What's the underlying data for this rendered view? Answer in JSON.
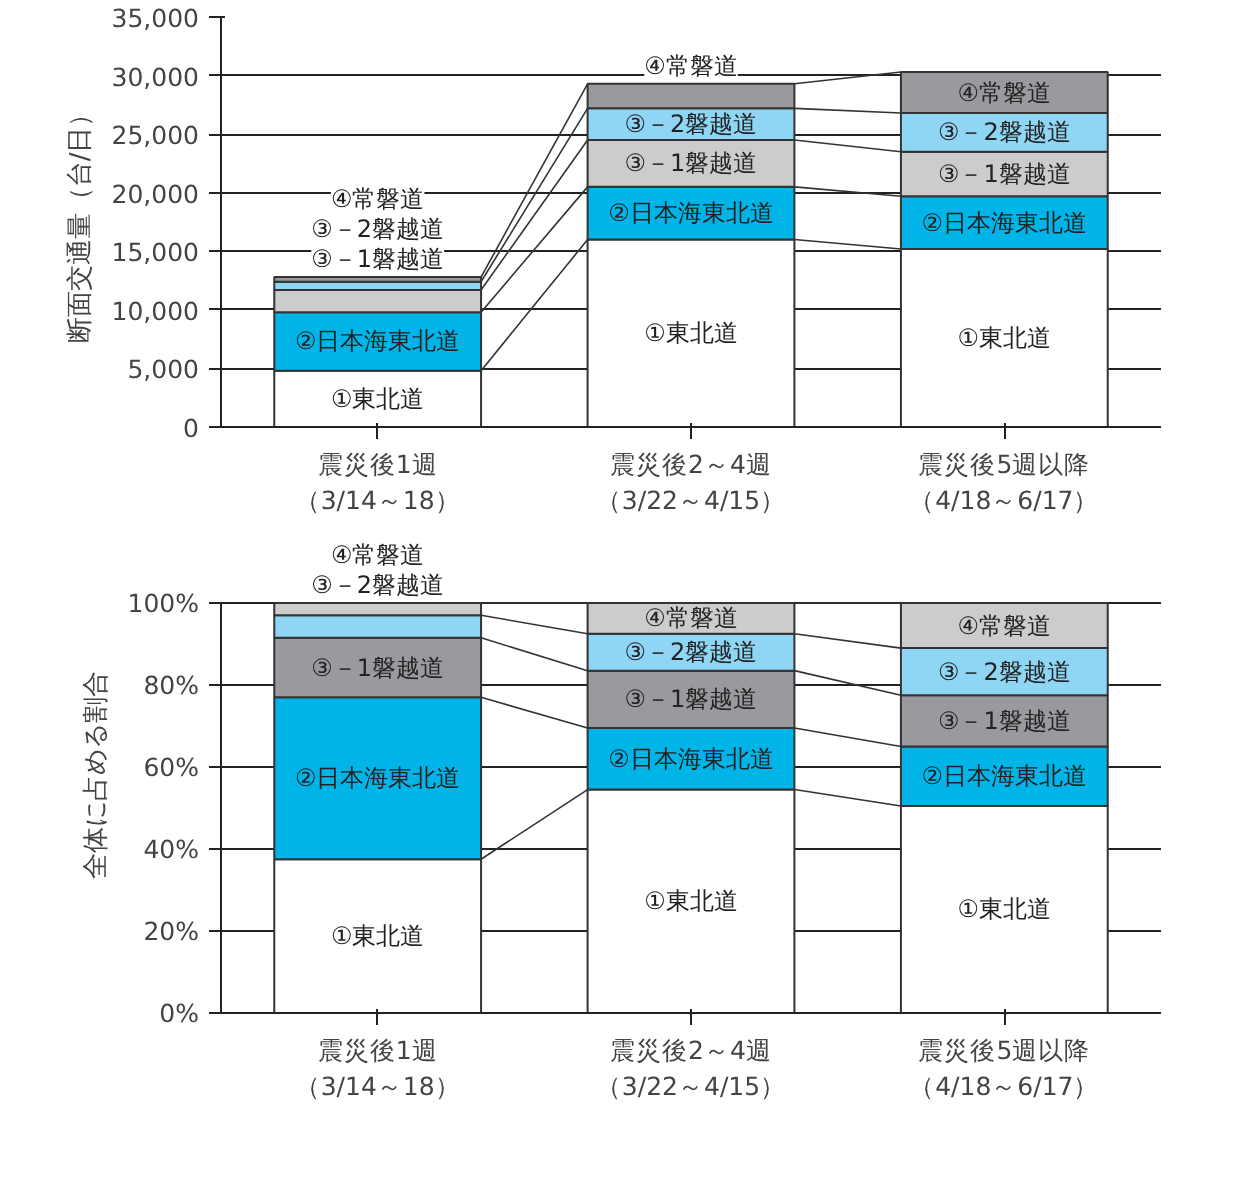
{
  "chart_data": [
    {
      "type": "bar",
      "stacked": true,
      "ylabel": "断面交通量（台/日）",
      "categories": [
        "震災後1週（3/14～18）",
        "震災後2～4週（3/22～4/15）",
        "震災後5週以降（4/18～6/17）"
      ],
      "legend": "top right",
      "grid": "y",
      "ylim": [
        0,
        35000
      ],
      "yticks": [
        {
          "value": 0,
          "label": "0"
        },
        {
          "value": 5000,
          "label": "5,000"
        },
        {
          "value": 10000,
          "label": "10,000"
        },
        {
          "value": 15000,
          "label": "15,000"
        },
        {
          "value": 20000,
          "label": "20,000"
        },
        {
          "value": 25000,
          "label": "25,000"
        },
        {
          "value": 30000,
          "label": "30,000"
        },
        {
          "value": 35000,
          "label": "35,000"
        }
      ],
      "series": [
        {
          "name": "①東北道",
          "color": "#ffffff",
          "values": [
            4800,
            16000,
            15200
          ]
        },
        {
          "name": "②日本海東北道",
          "color": "#00b4e8",
          "values": [
            5000,
            4500,
            4500
          ]
        },
        {
          "name": "③－1磐越道",
          "color": "#cccccc",
          "values": [
            1900,
            4000,
            3800
          ]
        },
        {
          "name": "③－2磐越道",
          "color": "#8fd6f4",
          "values": [
            700,
            2700,
            3300
          ]
        },
        {
          "name": "④常磐道",
          "color": "#9a9a9e",
          "values": [
            400,
            2100,
            3500
          ]
        }
      ]
    },
    {
      "type": "bar",
      "stacked": true,
      "ylabel": "全体に占める割合",
      "categories": [
        "震災後1週（3/14～18）",
        "震災後2～4週（3/22～4/15）",
        "震災後5週以降（4/18～6/17）"
      ],
      "legend": "top",
      "grid": "y",
      "ylim": [
        0,
        100
      ],
      "yticks": [
        {
          "value": 0,
          "label": "0%"
        },
        {
          "value": 20,
          "label": "20%"
        },
        {
          "value": 40,
          "label": "40%"
        },
        {
          "value": 60,
          "label": "60%"
        },
        {
          "value": 80,
          "label": "80%"
        },
        {
          "value": 100,
          "label": "100%"
        }
      ],
      "series": [
        {
          "name": "①東北道",
          "color": "#ffffff",
          "values": [
            37.5,
            54.5,
            50.5
          ]
        },
        {
          "name": "②日本海東北道",
          "color": "#00b4e8",
          "values": [
            39.5,
            15,
            14.5
          ]
        },
        {
          "name": "③－1磐越道",
          "color": "#9a9a9e",
          "values": [
            14.5,
            14,
            12.5
          ]
        },
        {
          "name": "③－2磐越道",
          "color": "#8fd6f4",
          "values": [
            5.5,
            9,
            11.5
          ]
        },
        {
          "name": "④常磐道",
          "color": "#cccccc",
          "values": [
            3,
            7.5,
            11
          ]
        }
      ]
    }
  ]
}
